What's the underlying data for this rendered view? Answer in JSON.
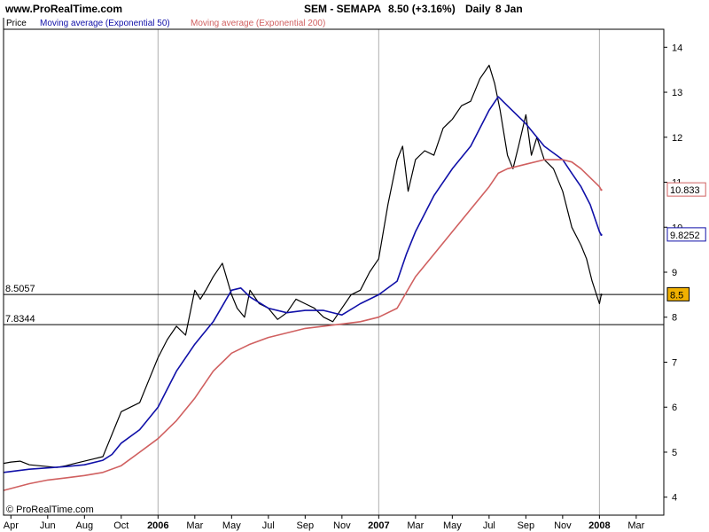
{
  "header": {
    "site": "www.ProRealTime.com",
    "symbol": "SEM - SEMAPA",
    "price_change": "8.50 (+3.16%)",
    "period": "Daily",
    "date": "8 Jan"
  },
  "legend": {
    "price": "Price",
    "ma50": "Moving average (Exponential 50)",
    "ma200": "Moving average (Exponential 200)"
  },
  "copyright": "© ProRealTime.com",
  "colors": {
    "price": "#000000",
    "ma50": "#1010a8",
    "ma200": "#d06060",
    "current_bg": "#f0b000"
  },
  "chart_data": {
    "type": "line",
    "title": "SEM - SEMAPA",
    "ylim": [
      3.6,
      14.4
    ],
    "y_ticks": [
      4,
      5,
      6,
      7,
      8,
      9,
      10,
      11,
      12,
      13,
      14
    ],
    "x_ticks": [
      "Apr",
      "Jun",
      "Aug",
      "Oct",
      "2006",
      "Mar",
      "May",
      "Jul",
      "Sep",
      "Nov",
      "2007",
      "Mar",
      "May",
      "Jul",
      "Sep",
      "Nov",
      "2008",
      "Mar"
    ],
    "x_tick_positions": [
      0,
      2,
      4,
      6,
      8,
      10,
      12,
      14,
      16,
      18,
      20,
      22,
      24,
      26,
      28,
      30,
      32,
      34
    ],
    "xlim": [
      -0.4,
      35.5
    ],
    "x_unit": "months since Apr 2005",
    "h_lines": [
      {
        "value": 8.5057,
        "label": "8.5057"
      },
      {
        "value": 7.8344,
        "label": "7.8344"
      }
    ],
    "current_labels": {
      "price": "8.5",
      "ma50": "9.8252",
      "ma200": "10.833"
    },
    "series": [
      {
        "name": "Price",
        "color": "#000000",
        "x": [
          -0.4,
          0,
          0.5,
          1,
          1.5,
          2,
          2.5,
          3,
          3.5,
          4,
          4.5,
          5,
          5.3,
          5.7,
          6,
          6.5,
          7,
          7.5,
          8,
          8.5,
          9,
          9.5,
          10,
          10.3,
          10.6,
          11,
          11.5,
          12,
          12.3,
          12.7,
          13,
          13.5,
          14,
          14.5,
          15,
          15.5,
          16,
          16.5,
          17,
          17.5,
          18,
          18.5,
          19,
          19.5,
          20,
          20.5,
          21,
          21.3,
          21.6,
          22,
          22.5,
          23,
          23.5,
          24,
          24.5,
          25,
          25.5,
          26,
          26.3,
          26.6,
          27,
          27.3,
          27.6,
          28,
          28.3,
          28.6,
          29,
          29.5,
          30,
          30.5,
          31,
          31.3,
          31.6,
          32,
          32.1
        ],
        "y": [
          4.75,
          4.78,
          4.8,
          4.72,
          4.7,
          4.68,
          4.66,
          4.7,
          4.75,
          4.8,
          4.85,
          4.9,
          5.2,
          5.6,
          5.9,
          6.0,
          6.1,
          6.6,
          7.1,
          7.5,
          7.8,
          7.6,
          8.6,
          8.4,
          8.6,
          8.9,
          9.2,
          8.5,
          8.2,
          8.0,
          8.6,
          8.3,
          8.2,
          7.95,
          8.1,
          8.4,
          8.3,
          8.2,
          8.0,
          7.9,
          8.2,
          8.5,
          8.6,
          9.0,
          9.3,
          10.5,
          11.5,
          11.8,
          10.8,
          11.5,
          11.7,
          11.6,
          12.2,
          12.4,
          12.7,
          12.8,
          13.3,
          13.6,
          13.2,
          12.6,
          11.6,
          11.3,
          11.8,
          12.5,
          11.6,
          12.0,
          11.5,
          11.3,
          10.8,
          10.0,
          9.6,
          9.3,
          8.8,
          8.3,
          8.5
        ]
      },
      {
        "name": "Moving average (Exponential 50)",
        "color": "#1010a8",
        "x": [
          -0.4,
          1,
          2,
          3,
          4,
          5,
          5.5,
          6,
          7,
          8,
          8.5,
          9,
          10,
          11,
          12,
          12.5,
          13,
          14,
          15,
          16,
          17,
          18,
          19,
          20,
          21,
          21.5,
          22,
          23,
          24,
          25,
          26,
          26.5,
          27,
          28,
          29,
          30,
          30.5,
          31,
          31.5,
          32,
          32.1
        ],
        "y": [
          4.55,
          4.62,
          4.65,
          4.68,
          4.72,
          4.82,
          4.95,
          5.2,
          5.5,
          6.0,
          6.4,
          6.8,
          7.4,
          7.9,
          8.6,
          8.65,
          8.45,
          8.2,
          8.1,
          8.15,
          8.15,
          8.05,
          8.3,
          8.5,
          8.8,
          9.4,
          9.9,
          10.7,
          11.3,
          11.8,
          12.6,
          12.9,
          12.7,
          12.3,
          11.8,
          11.5,
          11.2,
          10.9,
          10.5,
          9.9,
          9.83
        ]
      },
      {
        "name": "Moving average (Exponential 200)",
        "color": "#d06060",
        "x": [
          -0.4,
          1,
          2,
          3,
          4,
          5,
          6,
          7,
          8,
          9,
          10,
          11,
          12,
          13,
          14,
          15,
          16,
          17,
          18,
          19,
          20,
          21,
          22,
          23,
          24,
          25,
          26,
          26.5,
          27,
          28,
          29,
          30,
          30.5,
          31,
          31.5,
          32,
          32.1
        ],
        "y": [
          4.15,
          4.3,
          4.38,
          4.43,
          4.48,
          4.55,
          4.7,
          5.0,
          5.3,
          5.7,
          6.2,
          6.8,
          7.2,
          7.4,
          7.55,
          7.65,
          7.75,
          7.8,
          7.85,
          7.9,
          8.0,
          8.2,
          8.9,
          9.4,
          9.9,
          10.4,
          10.9,
          11.2,
          11.3,
          11.4,
          11.5,
          11.5,
          11.45,
          11.3,
          11.1,
          10.9,
          10.83
        ]
      }
    ]
  }
}
